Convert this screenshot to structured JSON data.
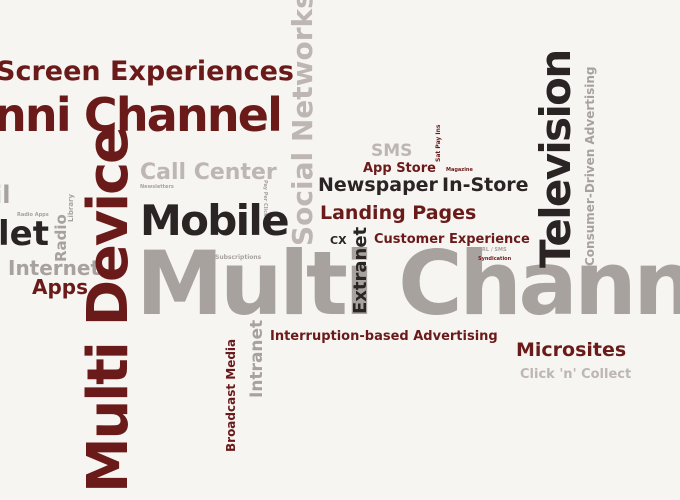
{
  "words": {
    "screen_experiences": "Screen Experiences",
    "omni_channel": "nni Channel",
    "multi_device": "Multi Device",
    "mobile": "Mobile",
    "call_center": "Call Center",
    "social_networks": "Social Networks",
    "television": "Television",
    "consumer_driven_advertising": "Consumer-Driven Advertising",
    "newspaper": "Newspaper",
    "in_store": "In-Store",
    "landing_pages": "Landing Pages",
    "sms": "SMS",
    "app_store": "App Store",
    "customer_experience": "Customer Experience",
    "extranet": "Extranet",
    "cx": "CX",
    "multi_channel": "Multi Channel",
    "internet": "Internet",
    "apps": "Apps",
    "tablet_fragment": "let",
    "il_fragment": "il",
    "radio": "Radio",
    "radio_apps": "Radio Apps",
    "interruption_advertising": "Interruption-based Advertising",
    "microsites": "Microsites",
    "click_n_collect": "Click 'n' Collect",
    "intranet": "Intranet",
    "broadcast_media": "Broadcast Media",
    "subscriptions": "Subscriptions",
    "newsletters": "Newsletters",
    "magazine": "Magazine",
    "syndication": "Syndication",
    "url_sms": "URL / SMS",
    "small_vertical_a": "Pay Per Click",
    "small_vertical_b": "Sat Pay Ins",
    "library": "Library"
  },
  "colors": {
    "background": "#f6f5f2",
    "maroon": "#6b1a1a",
    "dark": "#2a2424",
    "grey": "#a8a29e",
    "light_grey": "#bdb6b2"
  }
}
